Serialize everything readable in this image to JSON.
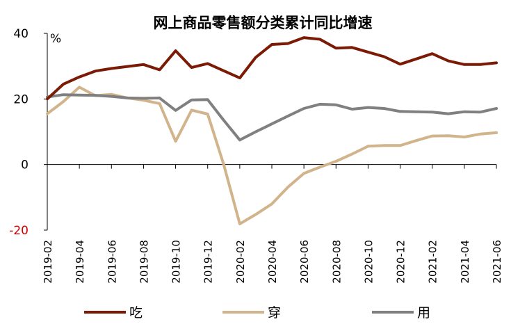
{
  "chart_data": {
    "type": "line",
    "title": "网上商品零售额分类累计同比增速",
    "unit_label": "%",
    "xlabel": "",
    "ylabel": "",
    "ylim": [
      -20,
      40
    ],
    "y_ticks": [
      40,
      20,
      0,
      -20
    ],
    "negative_tick_color": "#cc0000",
    "x": [
      "2019-02",
      "2019-03",
      "2019-04",
      "2019-05",
      "2019-06",
      "2019-07",
      "2019-08",
      "2019-09",
      "2019-10",
      "2019-11",
      "2019-12",
      "2020-01",
      "2020-02",
      "2020-03",
      "2020-04",
      "2020-05",
      "2020-06",
      "2020-07",
      "2020-08",
      "2020-09",
      "2020-10",
      "2020-11",
      "2020-12",
      "2021-01",
      "2021-02",
      "2021-03",
      "2021-04",
      "2021-05",
      "2021-06"
    ],
    "x_tick_labels": [
      "2019-02",
      "2019-04",
      "2019-06",
      "2019-08",
      "2019-10",
      "2019-12",
      "2020-02",
      "2020-04",
      "2020-06",
      "2020-08",
      "2020-10",
      "2020-12",
      "2021-02",
      "2021-04",
      "2021-06"
    ],
    "series": [
      {
        "name": "吃",
        "color": "#7b1a05",
        "values": [
          20.0,
          24.5,
          26.7,
          28.5,
          29.3,
          29.9,
          30.5,
          28.9,
          34.7,
          29.6,
          30.8,
          28.6,
          26.4,
          32.7,
          36.6,
          36.9,
          38.7,
          38.2,
          35.5,
          35.7,
          34.3,
          32.9,
          30.6,
          32.2,
          33.8,
          31.6,
          30.5,
          30.5,
          31.0
        ]
      },
      {
        "name": "穿",
        "color": "#d2b48c",
        "values": [
          15.5,
          19.2,
          23.6,
          21.0,
          21.4,
          20.3,
          19.6,
          18.6,
          7.1,
          16.6,
          15.4,
          0.0,
          -18.1,
          -15.2,
          -12.0,
          -6.9,
          -2.7,
          -0.8,
          1.0,
          3.2,
          5.6,
          5.8,
          5.8,
          7.3,
          8.7,
          8.8,
          8.4,
          9.3,
          9.7
        ]
      },
      {
        "name": "用",
        "color": "#808080",
        "values": [
          20.6,
          21.3,
          21.2,
          21.1,
          20.8,
          20.3,
          20.2,
          20.3,
          16.5,
          19.7,
          19.8,
          13.5,
          7.5,
          10.0,
          12.4,
          14.8,
          17.1,
          18.4,
          18.2,
          16.9,
          17.4,
          17.1,
          16.2,
          16.1,
          16.0,
          15.5,
          16.1,
          16.0,
          17.1
        ]
      }
    ],
    "legend_position": "bottom",
    "grid": false
  }
}
